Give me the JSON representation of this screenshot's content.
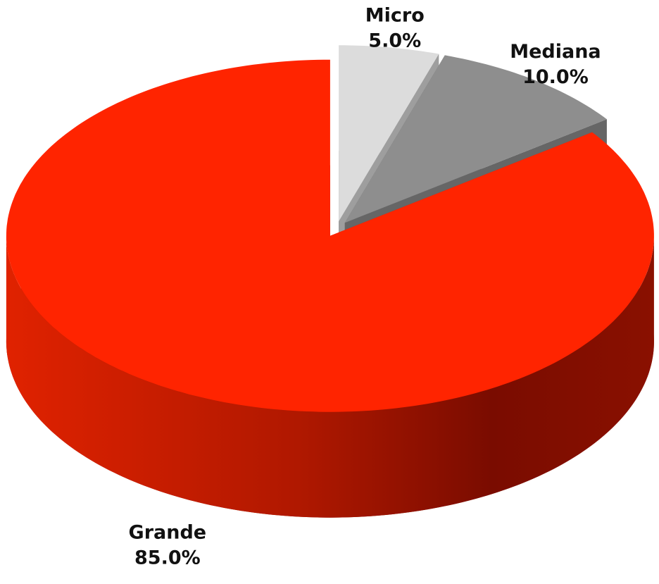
{
  "chart_data": {
    "type": "pie",
    "categories": [
      "Micro",
      "Mediana",
      "Grande"
    ],
    "values": [
      5,
      10,
      85
    ],
    "value_labels": [
      "5.0%",
      "10.0%",
      "85.0%"
    ],
    "colors": [
      "#dcdcdc",
      "#8e8e8e",
      "#ff2400"
    ]
  }
}
